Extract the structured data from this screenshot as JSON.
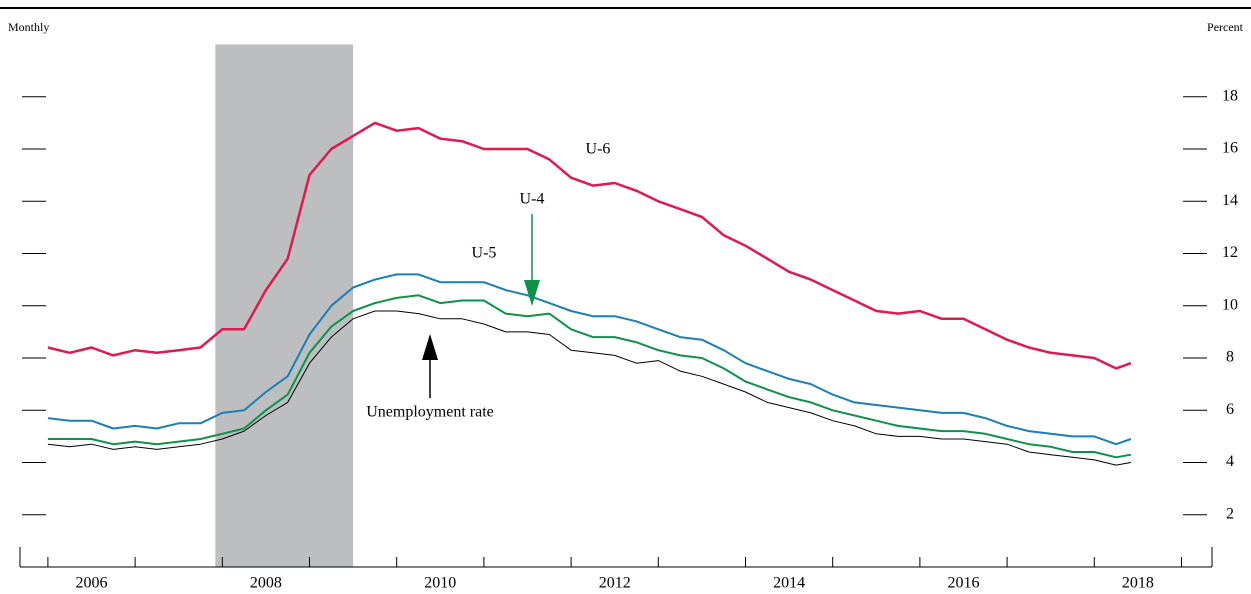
{
  "chart_data": {
    "type": "line",
    "subtitle": "Monthly",
    "ylabel": "Percent",
    "x": [
      2006,
      2006.25,
      2006.5,
      2006.75,
      2007,
      2007.25,
      2007.5,
      2007.75,
      2008,
      2008.25,
      2008.5,
      2008.75,
      2009,
      2009.25,
      2009.5,
      2009.75,
      2010,
      2010.25,
      2010.5,
      2010.75,
      2011,
      2011.25,
      2011.5,
      2011.75,
      2012,
      2012.25,
      2012.5,
      2012.75,
      2013,
      2013.25,
      2013.5,
      2013.75,
      2014,
      2014.25,
      2014.5,
      2014.75,
      2015,
      2015.25,
      2015.5,
      2015.75,
      2016,
      2016.25,
      2016.5,
      2016.75,
      2017,
      2017.25,
      2017.5,
      2017.75,
      2018,
      2018.25,
      2018.42
    ],
    "series": [
      {
        "name": "U-6",
        "color": "#e0194f",
        "values": [
          8.4,
          8.2,
          8.4,
          8.1,
          8.3,
          8.2,
          8.3,
          8.4,
          9.1,
          9.1,
          10.6,
          11.8,
          15.0,
          16.0,
          16.5,
          17.0,
          16.7,
          16.8,
          16.4,
          16.3,
          16.0,
          16.0,
          16.0,
          15.6,
          14.9,
          14.6,
          14.7,
          14.4,
          14.0,
          13.7,
          13.4,
          12.7,
          12.3,
          11.8,
          11.3,
          11.0,
          10.6,
          10.2,
          9.8,
          9.7,
          9.8,
          9.5,
          9.5,
          9.1,
          8.7,
          8.4,
          8.2,
          8.1,
          8.0,
          7.6,
          7.8
        ]
      },
      {
        "name": "U-4",
        "color": "#0e9149",
        "values": [
          4.9,
          4.9,
          4.9,
          4.7,
          4.8,
          4.7,
          4.8,
          4.9,
          5.1,
          5.3,
          6.0,
          6.6,
          8.2,
          9.2,
          9.8,
          10.1,
          10.3,
          10.4,
          10.1,
          10.2,
          10.2,
          9.7,
          9.6,
          9.7,
          9.1,
          8.8,
          8.8,
          8.6,
          8.3,
          8.1,
          8.0,
          7.6,
          7.1,
          6.8,
          6.5,
          6.3,
          6.0,
          5.8,
          5.6,
          5.4,
          5.3,
          5.2,
          5.2,
          5.1,
          4.9,
          4.7,
          4.6,
          4.4,
          4.4,
          4.2,
          4.3
        ]
      },
      {
        "name": "U-5",
        "color": "#1a7fb5",
        "values": [
          5.7,
          5.6,
          5.6,
          5.3,
          5.4,
          5.3,
          5.5,
          5.5,
          5.9,
          6.0,
          6.7,
          7.3,
          8.9,
          10.0,
          10.7,
          11.0,
          11.2,
          11.2,
          10.9,
          10.9,
          10.9,
          10.6,
          10.4,
          10.1,
          9.8,
          9.6,
          9.6,
          9.4,
          9.1,
          8.8,
          8.7,
          8.3,
          7.8,
          7.5,
          7.2,
          7.0,
          6.6,
          6.3,
          6.2,
          6.1,
          6.0,
          5.9,
          5.9,
          5.7,
          5.4,
          5.2,
          5.1,
          5.0,
          5.0,
          4.7,
          4.9
        ]
      },
      {
        "name": "Unemployment rate",
        "color": "#000000",
        "values": [
          4.7,
          4.6,
          4.7,
          4.5,
          4.6,
          4.5,
          4.6,
          4.7,
          4.9,
          5.2,
          5.8,
          6.3,
          7.8,
          8.8,
          9.5,
          9.8,
          9.8,
          9.7,
          9.5,
          9.5,
          9.3,
          9.0,
          9.0,
          8.9,
          8.3,
          8.2,
          8.1,
          7.8,
          7.9,
          7.5,
          7.3,
          7.0,
          6.7,
          6.3,
          6.1,
          5.9,
          5.6,
          5.4,
          5.1,
          5.0,
          5.0,
          4.9,
          4.9,
          4.8,
          4.7,
          4.4,
          4.3,
          4.2,
          4.1,
          3.9,
          4.0
        ]
      }
    ],
    "shading": [
      2007.92,
      2009.5
    ],
    "shading_color": "#bcbec0",
    "xlim": [
      2005.68,
      2019.35
    ],
    "xticks": [
      2006,
      2007,
      2008,
      2009,
      2010,
      2011,
      2012,
      2013,
      2014,
      2015,
      2016,
      2017,
      2018,
      2019
    ],
    "x_labels": [
      {
        "value": 2006.5,
        "label": "2006"
      },
      {
        "value": 2008.5,
        "label": "2008"
      },
      {
        "value": 2010.5,
        "label": "2010"
      },
      {
        "value": 2012.5,
        "label": "2012"
      },
      {
        "value": 2014.5,
        "label": "2014"
      },
      {
        "value": 2016.5,
        "label": "2016"
      },
      {
        "value": 2018.5,
        "label": "2018"
      }
    ],
    "ylim": [
      0,
      20
    ],
    "yticks": [
      2,
      4,
      6,
      8,
      10,
      12,
      14,
      16,
      18
    ]
  }
}
